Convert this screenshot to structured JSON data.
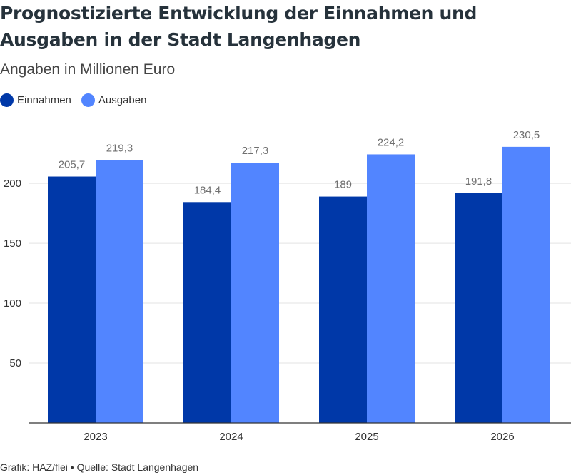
{
  "title": "Prognostizierte Entwicklung der Einnahmen und Ausgaben in der Stadt Langenhagen",
  "subtitle": "Angaben in Millionen Euro",
  "footer": "Grafik: HAZ/flei • Quelle: Stadt Langenhagen",
  "chart_data": {
    "type": "bar",
    "title": "Prognostizierte Entwicklung der Einnahmen und Ausgaben in der Stadt Langenhagen",
    "subtitle": "Angaben in Millionen Euro",
    "categories": [
      "2023",
      "2024",
      "2025",
      "2026"
    ],
    "series": [
      {
        "name": "Einnahmen",
        "values": [
          205.7,
          184.4,
          189,
          191.8
        ],
        "labels": [
          "205,7",
          "184,4",
          "189",
          "191,8"
        ],
        "color": "#0038a8"
      },
      {
        "name": "Ausgaben",
        "values": [
          219.3,
          217.3,
          224.2,
          230.5
        ],
        "labels": [
          "219,3",
          "217,3",
          "224,2",
          "230,5"
        ],
        "color": "#5285ff"
      }
    ],
    "yticks": [
      50,
      100,
      150,
      200
    ],
    "ylim": [
      0,
      240
    ],
    "xlabel": "",
    "ylabel": "",
    "grid": true,
    "legend": "top-left"
  }
}
